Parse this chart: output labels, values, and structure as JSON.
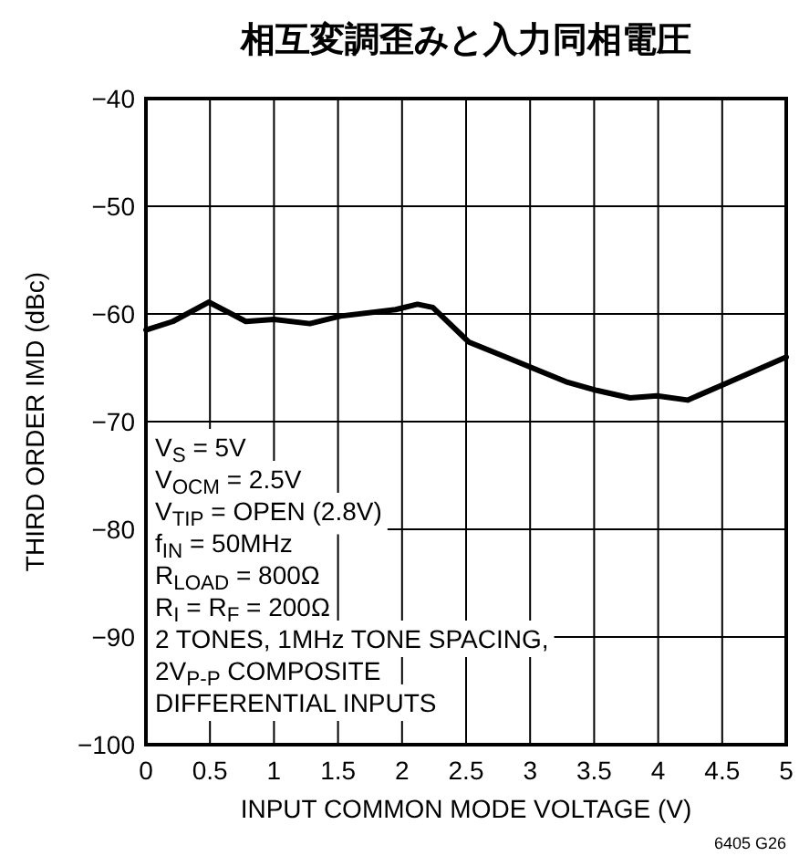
{
  "chart_data": {
    "type": "line",
    "title": "相互変調歪みと入力同相電圧",
    "xlabel": "INPUT COMMON MODE VOLTAGE (V)",
    "ylabel": "THIRD ORDER IMD (dBc)",
    "x": [
      0,
      0.21,
      0.49,
      0.78,
      1.0,
      1.28,
      1.52,
      1.95,
      2.12,
      2.24,
      2.52,
      2.81,
      3.28,
      3.52,
      3.78,
      3.99,
      4.23,
      4.52,
      5.0
    ],
    "series": [
      {
        "color": "#000000",
        "values": [
          -61.5,
          -60.7,
          -58.9,
          -60.7,
          -60.5,
          -60.9,
          -60.2,
          -59.6,
          -59.1,
          -59.4,
          -62.6,
          -64.0,
          -66.3,
          -67.1,
          -67.8,
          -67.6,
          -68.0,
          -66.5,
          -64.0
        ]
      }
    ],
    "xlim": [
      0,
      5
    ],
    "xticks": [
      0,
      0.5,
      1,
      1.5,
      2,
      2.5,
      3,
      3.5,
      4,
      4.5,
      5
    ],
    "ylim": [
      -100,
      -40
    ],
    "yticks": [
      -100,
      -90,
      -80,
      -70,
      -60,
      -50,
      -40
    ],
    "grid": true,
    "annotations": [
      "V$_{S}$ = 5V",
      "V$_{OCM}$ = 2.5V",
      "V$_{TIP}$ = OPEN (2.8V)",
      "f$_{IN}$ = 50MHz",
      "R$_{LOAD}$ = 800Ω",
      "R$_{I}$ = R$_{F}$ = 200Ω",
      "2 TONES, 1MHz TONE SPACING,",
      "2V$_{P-P}$ COMPOSITE",
      "DIFFERENTIAL INPUTS",
      "6405 G26"
    ]
  }
}
